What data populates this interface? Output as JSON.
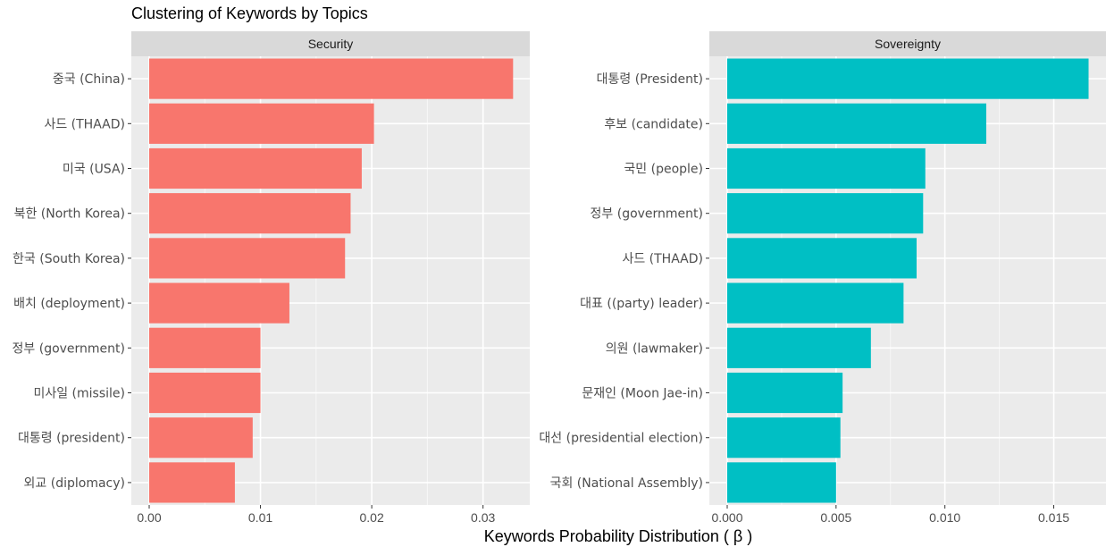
{
  "chart_data": {
    "type": "bar",
    "orientation": "horizontal",
    "title": "Clustering of Keywords by Topics",
    "xlabel": "Keywords Probability Distribution ( β )",
    "ylabel": "",
    "grid": true,
    "facets": [
      {
        "name": "Security",
        "color": "#F8766D",
        "xlim": [
          0,
          0.0342
        ],
        "ticks": [
          0,
          0.01,
          0.02,
          0.03
        ],
        "tick_labels": [
          "0.00",
          "0.01",
          "0.02",
          "0.03"
        ],
        "categories": [
          "중국 (China)",
          "사드 (THAAD)",
          "미국 (USA)",
          "북한 (North Korea)",
          "한국 (South Korea)",
          "배치 (deployment)",
          "정부 (government)",
          "미사일 (missile)",
          "대통령 (president)",
          "외교 (diplomacy)"
        ],
        "values": [
          0.0327,
          0.0202,
          0.0191,
          0.0181,
          0.0176,
          0.0126,
          0.01,
          0.01,
          0.0093,
          0.0077
        ]
      },
      {
        "name": "Sovereignty",
        "color": "#00BFC4",
        "xlim": [
          0,
          0.0174
        ],
        "ticks": [
          0,
          0.005,
          0.01,
          0.015
        ],
        "tick_labels": [
          "0.000",
          "0.005",
          "0.010",
          "0.015"
        ],
        "categories": [
          "대통령 (President)",
          "후보 (candidate)",
          "국민 (people)",
          "정부 (government)",
          "사드 (THAAD)",
          "대표 ((party) leader)",
          "의원 (lawmaker)",
          "문재인 (Moon Jae-in)",
          "대선 (presidential election)",
          "국회 (National Assembly)"
        ],
        "values": [
          0.0166,
          0.0119,
          0.0091,
          0.009,
          0.0087,
          0.0081,
          0.0066,
          0.0053,
          0.0052,
          0.005
        ]
      }
    ]
  }
}
